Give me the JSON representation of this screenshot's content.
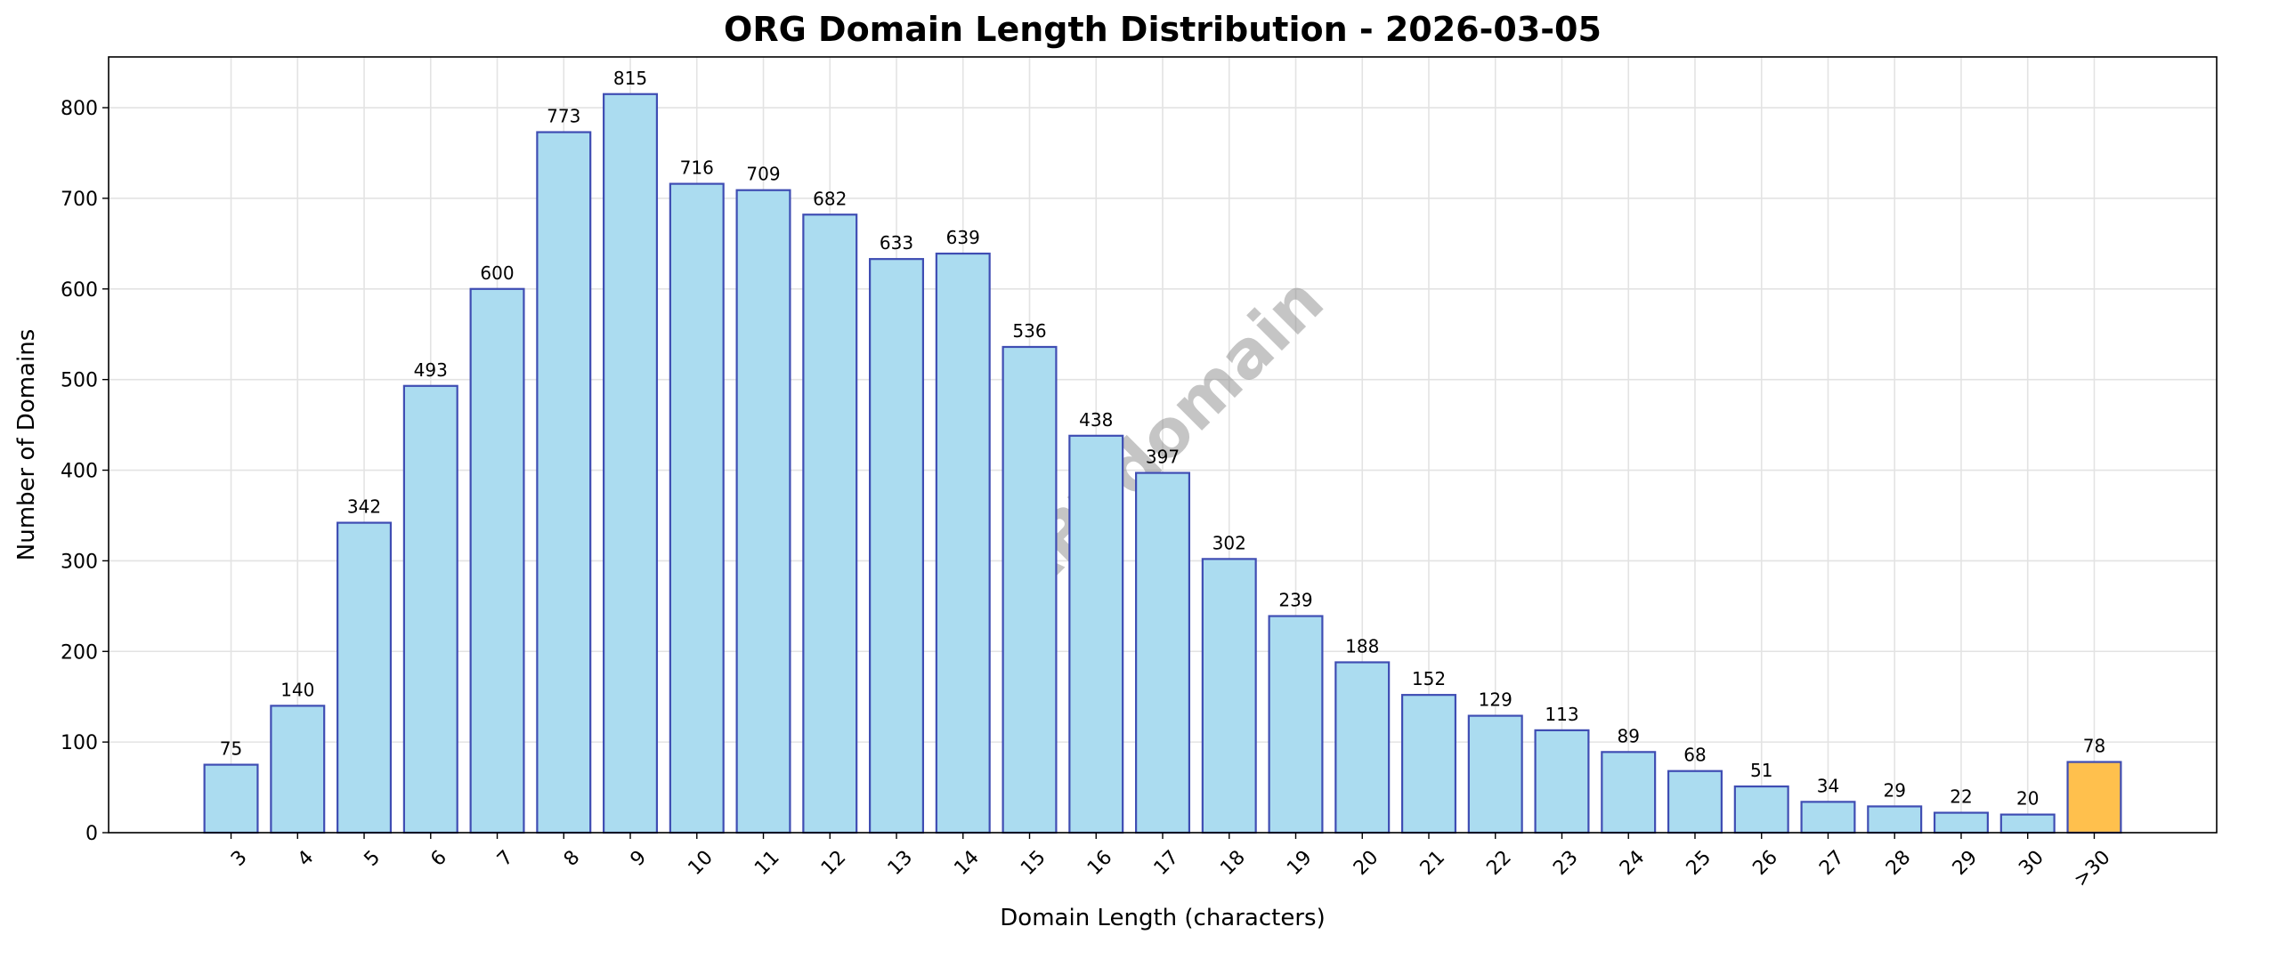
{
  "chart_data": {
    "type": "bar",
    "title": "ORG Domain Length Distribution - 2026-03-05",
    "xlabel": "Domain Length (characters)",
    "ylabel": "Number of Domains",
    "categories": [
      "3",
      "4",
      "5",
      "6",
      "7",
      "8",
      "9",
      "10",
      "11",
      "12",
      "13",
      "14",
      "15",
      "16",
      "17",
      "18",
      "19",
      "20",
      "21",
      "22",
      "23",
      "24",
      "25",
      "26",
      "27",
      "28",
      "29",
      "30",
      ">30"
    ],
    "values": [
      75,
      140,
      342,
      493,
      600,
      773,
      815,
      716,
      709,
      682,
      633,
      639,
      536,
      438,
      397,
      302,
      239,
      188,
      152,
      129,
      113,
      89,
      68,
      51,
      34,
      29,
      22,
      20,
      78
    ],
    "ylim": [
      0,
      856
    ],
    "yticks": [
      0,
      100,
      200,
      300,
      400,
      500,
      600,
      700,
      800
    ],
    "grid": true,
    "legend": "none",
    "watermark": "ABTdomain",
    "colors": {
      "bar_fill": "#abdcf0",
      "bar_edge": "#3f4db3",
      "highlight_fill": "#ffc04d",
      "grid": "#e3e3e3"
    }
  }
}
